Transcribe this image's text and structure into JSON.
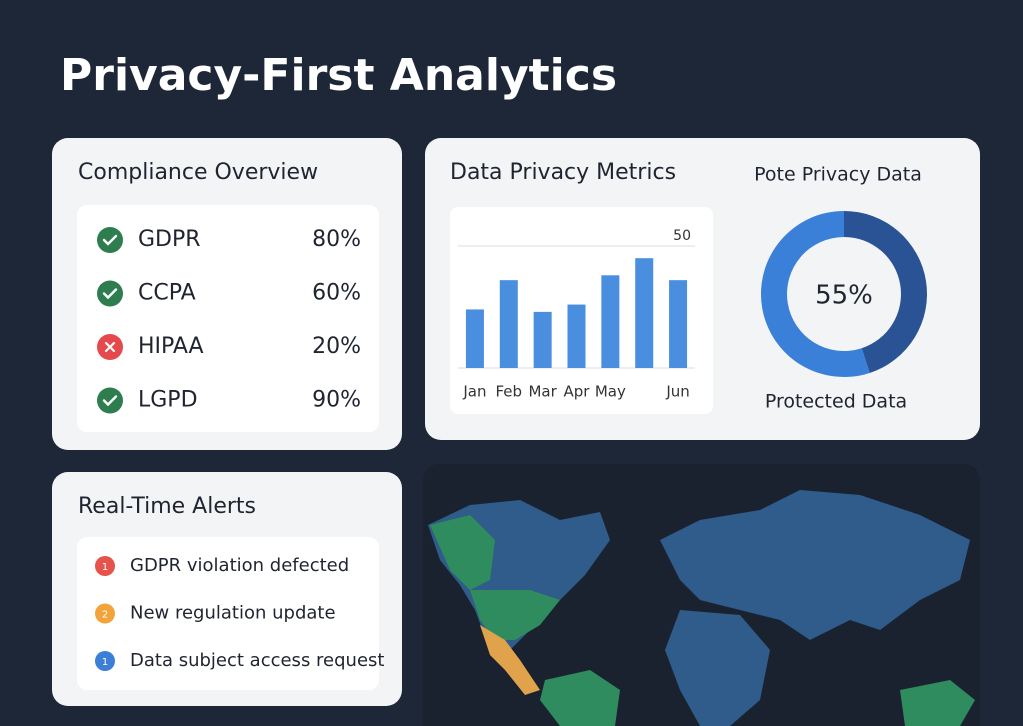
{
  "header": {
    "title": "Privacy-First Analytics"
  },
  "compliance": {
    "title": "Compliance Overview",
    "items": [
      {
        "name": "GDPR",
        "status": "ok",
        "percent": "80%"
      },
      {
        "name": "CCPA",
        "status": "ok",
        "percent": "60%"
      },
      {
        "name": "HIPAA",
        "status": "fail",
        "percent": "20%"
      },
      {
        "name": "LGPD",
        "status": "ok",
        "percent": "90%"
      }
    ]
  },
  "alerts": {
    "title": "Real-Time Alerts",
    "items": [
      {
        "badge": "1",
        "text": "GDPR violation defected",
        "color": "#e5534b"
      },
      {
        "badge": "2",
        "text": "New regulation update",
        "color": "#f2a43a"
      },
      {
        "badge": "1",
        "text": "Data subject access request",
        "color": "#3d7fd6"
      }
    ]
  },
  "chart_data": [
    {
      "type": "bar",
      "title": "Data Privacy Metrics",
      "categories": [
        "Jan",
        "Feb",
        "Mar",
        "Apr",
        "May",
        null,
        "Jun"
      ],
      "values": [
        24,
        36,
        23,
        26,
        38,
        45,
        36
      ],
      "color": "#4a8ee0",
      "ylim": [
        0,
        50
      ],
      "yticks": [
        50
      ],
      "grid": true
    },
    {
      "type": "pie",
      "title": "Pote Privacy Data",
      "categories": [
        null,
        "Protected Data"
      ],
      "values": [
        45,
        55
      ],
      "value_labels": [
        null,
        "55%"
      ],
      "colors": [
        "#2a5396",
        "#3a80d8"
      ],
      "donut": true
    }
  ]
}
